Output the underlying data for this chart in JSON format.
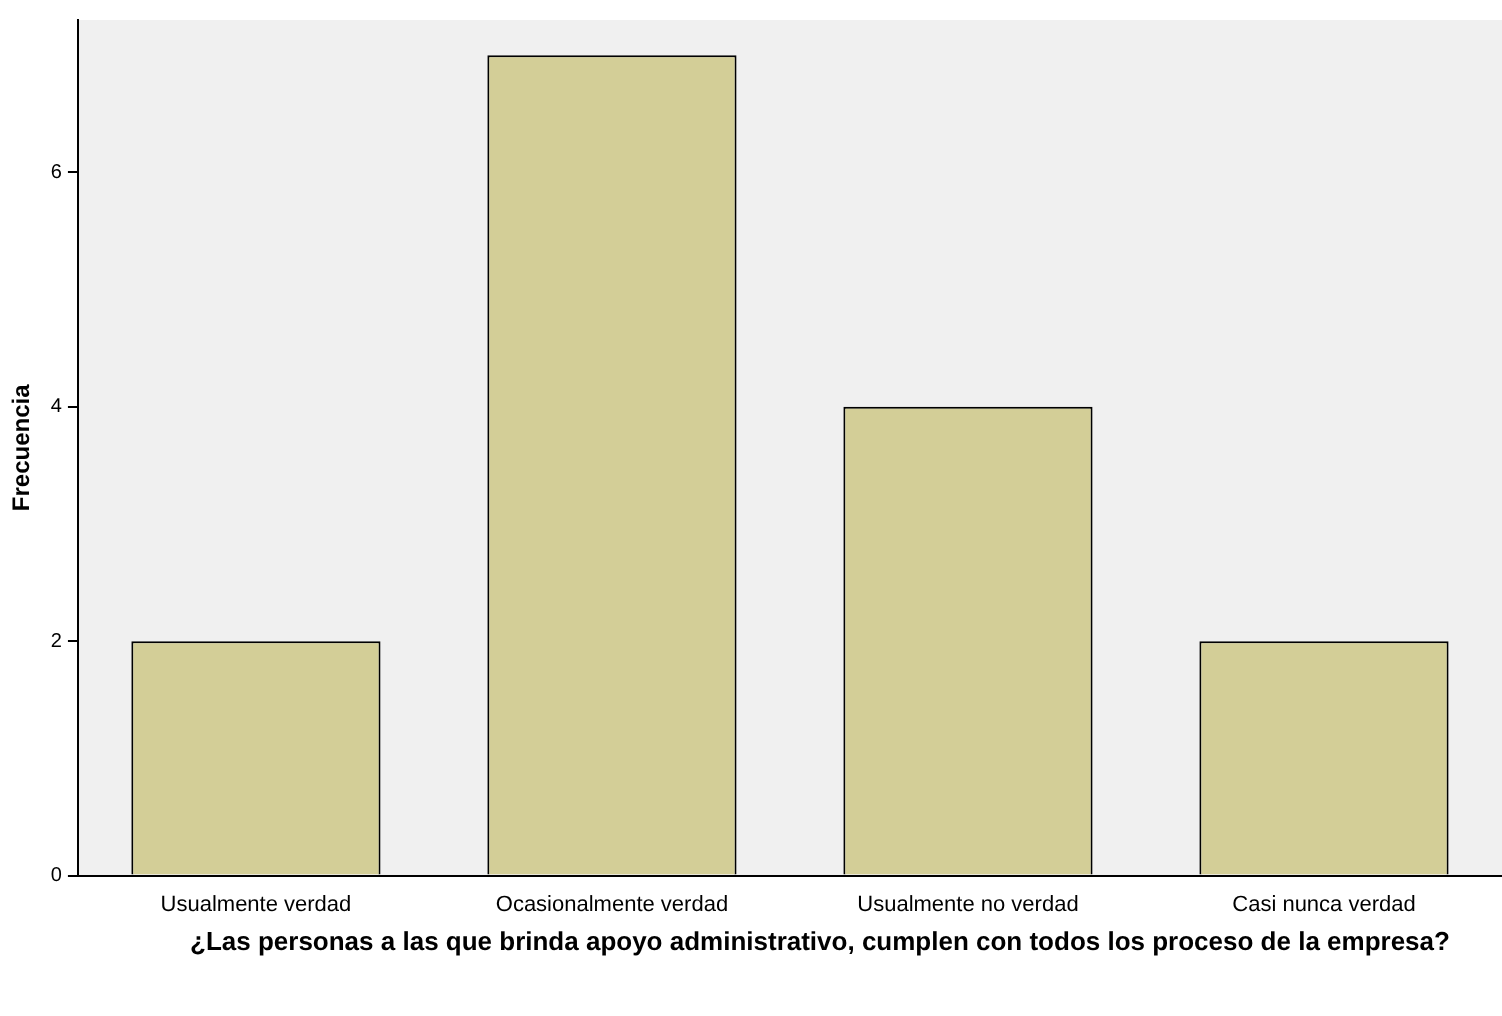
{
  "chart_data": {
    "type": "bar",
    "xlabel": "¿Las personas a las que brinda apoyo administrativo, cumplen con todos los proceso de la empresa?",
    "ylabel": "Frecuencia",
    "categories": [
      "Usualmente verdad",
      "Ocasionalmente verdad",
      "Usualmente no verdad",
      "Casi nunca verdad"
    ],
    "values": [
      2,
      7,
      4,
      2
    ],
    "color": "#d3ce97",
    "ylim": [
      0,
      7.3
    ],
    "yticks": [
      0,
      2,
      4,
      6
    ],
    "grid": false,
    "legend": false
  }
}
